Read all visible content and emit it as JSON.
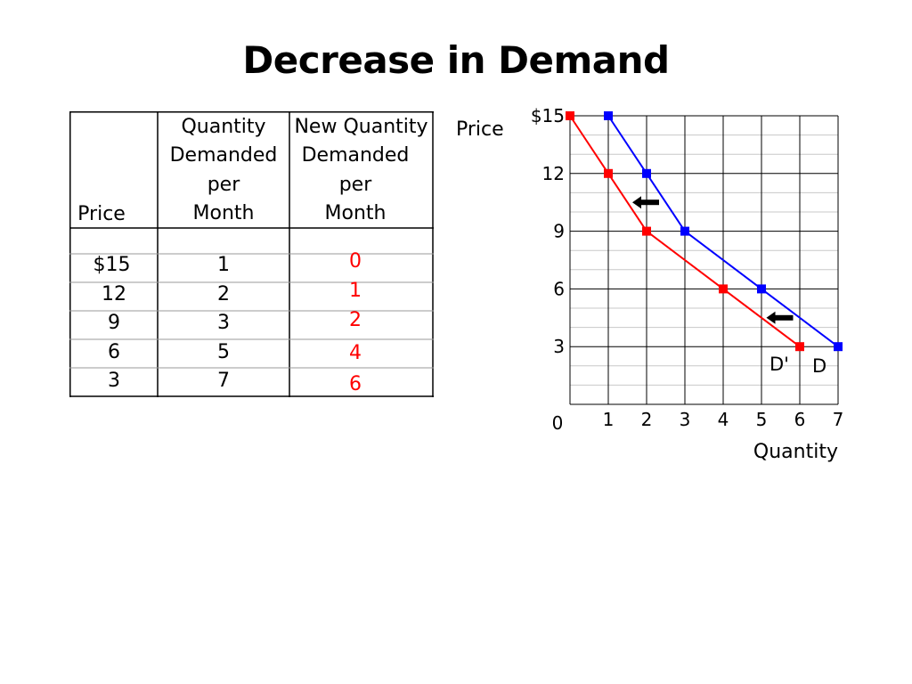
{
  "title": "Decrease in Demand",
  "table": {
    "headers": [
      "Price",
      "Quantity Demanded per Month",
      "New Quantity Demanded per Month"
    ],
    "header_lines": [
      [
        "Price"
      ],
      [
        "Quantity",
        "Demanded",
        "per",
        "Month"
      ],
      [
        "New Quantity",
        "Demanded",
        "per",
        "Month"
      ]
    ],
    "rows": [
      {
        "price": "$15",
        "qty": "1",
        "new_qty": "0"
      },
      {
        "price": "12",
        "qty": "2",
        "new_qty": "1"
      },
      {
        "price": "9",
        "qty": "3",
        "new_qty": "2"
      },
      {
        "price": "6",
        "qty": "5",
        "new_qty": "4"
      },
      {
        "price": "3",
        "qty": "7",
        "new_qty": "6"
      }
    ]
  },
  "chart_data": {
    "type": "line",
    "xlabel": "Quantity",
    "ylabel": "Price",
    "xlim": [
      0,
      7
    ],
    "ylim": [
      0,
      15
    ],
    "x_ticks": [
      "0",
      "1",
      "2",
      "3",
      "4",
      "5",
      "6",
      "7"
    ],
    "y_ticks": [
      "$15",
      "12",
      "9",
      "6",
      "3"
    ],
    "grid": true,
    "series": [
      {
        "name": "D",
        "color": "#0000ff",
        "x": [
          1,
          2,
          3,
          5,
          7
        ],
        "y": [
          15,
          12,
          9,
          6,
          3
        ]
      },
      {
        "name": "D'",
        "color": "#ff0000",
        "x": [
          0,
          1,
          2,
          4,
          6
        ],
        "y": [
          15,
          12,
          9,
          6,
          3
        ]
      }
    ],
    "annotations": [
      {
        "type": "arrow-left",
        "x": 2,
        "y": 10.5
      },
      {
        "type": "arrow-left",
        "x": 5.5,
        "y": 4.5
      }
    ]
  }
}
